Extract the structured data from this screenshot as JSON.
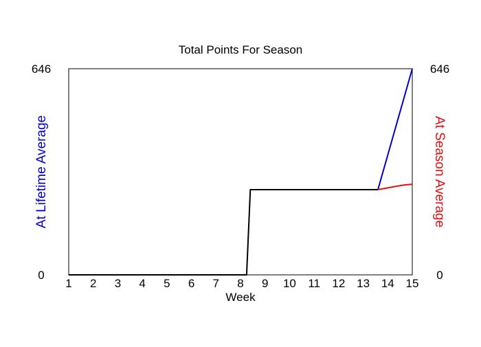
{
  "chart_data": {
    "type": "line",
    "title": "Total Points For Season",
    "xlabel": "Week",
    "ylabel_left": "At Lifetime Average",
    "ylabel_right": "At Season Average",
    "xlim": [
      1,
      15
    ],
    "ylim": [
      0,
      646
    ],
    "x_ticks": [
      "1",
      "2",
      "3",
      "4",
      "5",
      "6",
      "7",
      "8",
      "9",
      "10",
      "11",
      "12",
      "13",
      "14",
      "15"
    ],
    "y_ticks_left": [
      "0",
      "646"
    ],
    "y_ticks_right": [
      "0",
      "646"
    ],
    "grid": false,
    "colors": {
      "actual": "#000000",
      "lifetime": "#0000cc",
      "season": "#e01010"
    },
    "series": [
      {
        "color_key": "actual",
        "points": [
          [
            1,
            0
          ],
          [
            8.25,
            0
          ],
          [
            8.4,
            267
          ],
          [
            13.6,
            267
          ]
        ]
      },
      {
        "color_key": "lifetime",
        "points": [
          [
            13.6,
            267
          ],
          [
            15,
            646
          ]
        ]
      },
      {
        "color_key": "season",
        "points": [
          [
            13.6,
            267
          ],
          [
            14.6,
            281
          ],
          [
            15,
            284
          ]
        ]
      }
    ]
  }
}
